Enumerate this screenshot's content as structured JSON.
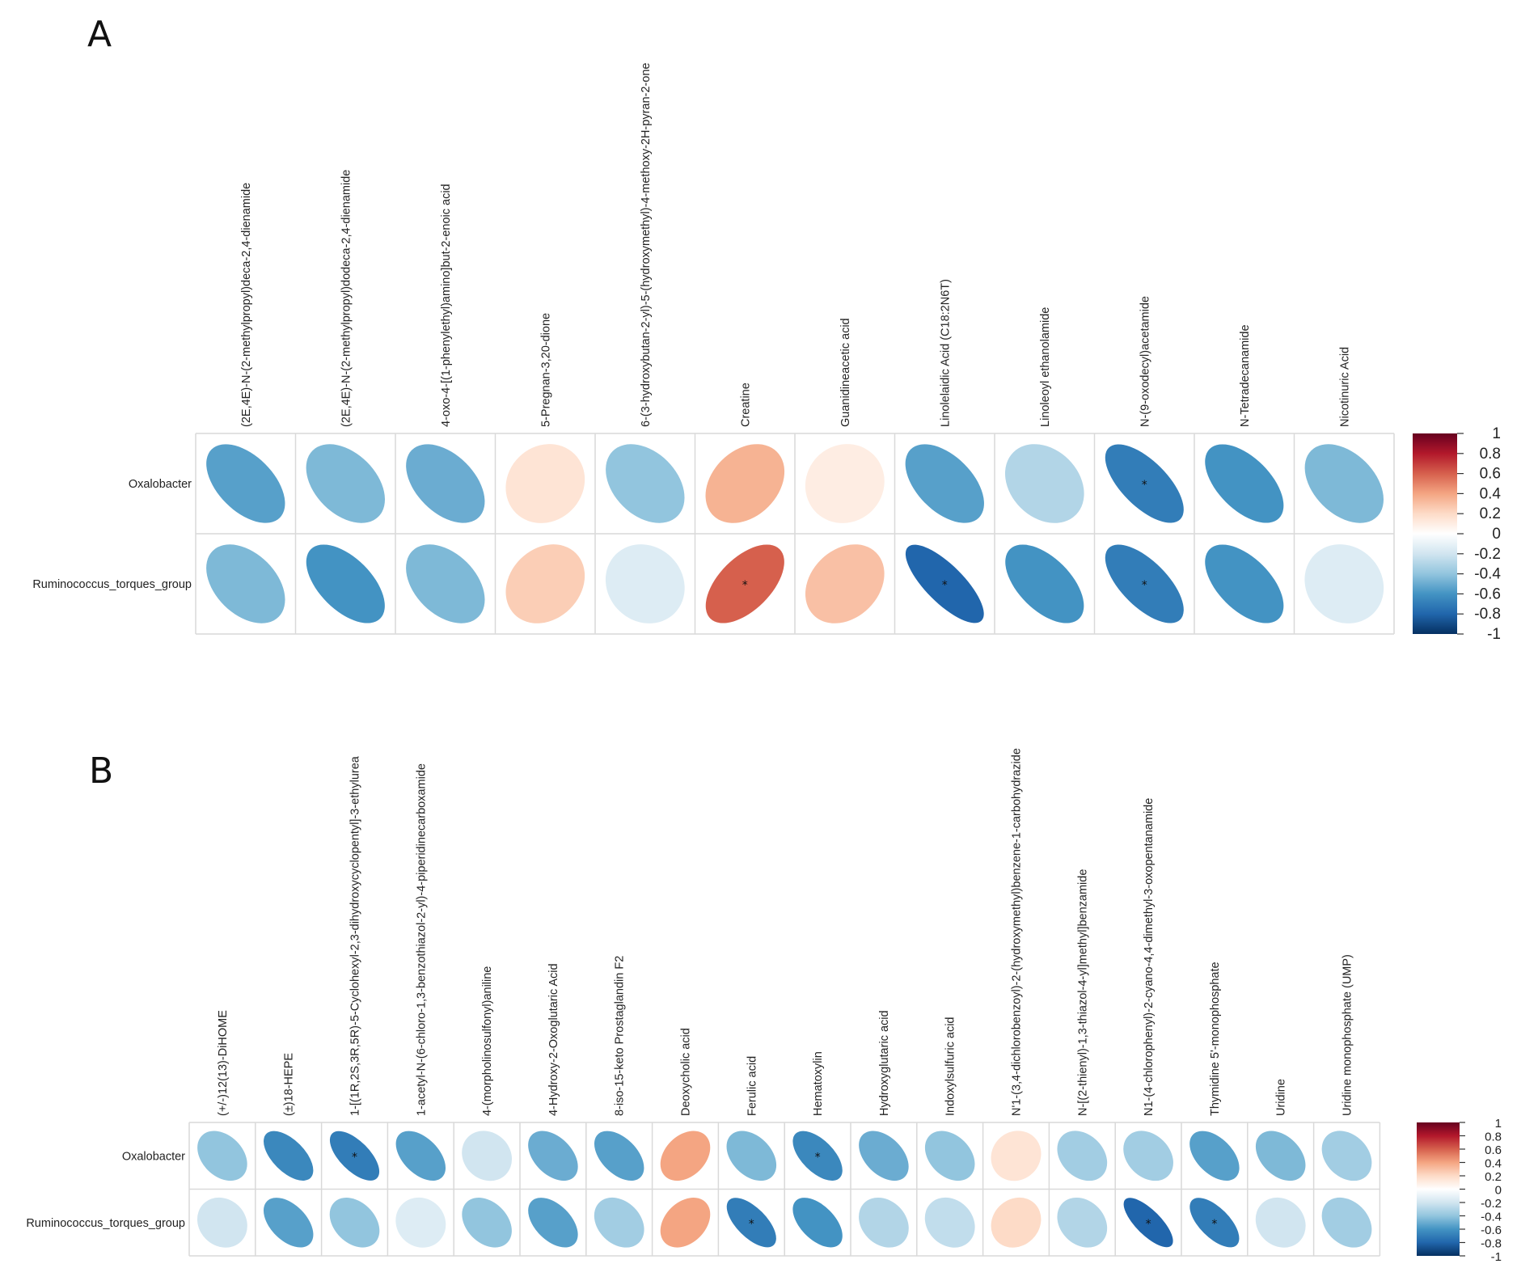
{
  "chart_data": [
    {
      "panel": "A",
      "type": "heatmap",
      "columns": [
        "(2E,4E)-N-(2-methylpropyl)deca-2,4-dienamide",
        "(2E,4E)-N-(2-methylpropyl)dodeca-2,4-dienamide",
        "4-oxo-4-[(1-phenylethyl)amino]but-2-enoic acid",
        "5-Pregnan-3,20-dione",
        "6-(3-hydroxybutan-2-yl)-5-(hydroxymethyl)-4-methoxy-2H-pyran-2-one",
        "Creatine",
        "Guanidineacetic acid",
        "Linolelaidic Acid (C18:2N6T)",
        "Linoleoyl ethanolamide",
        "N-(9-oxodecyl)acetamide",
        "N-Tetradecanamide",
        "Nicotinuric Acid"
      ],
      "rows": [
        "Oxalobacter",
        "Ruminococcus_torques_group"
      ],
      "values": [
        [
          -0.55,
          -0.45,
          -0.5,
          0.15,
          -0.4,
          0.35,
          0.1,
          -0.55,
          -0.3,
          -0.7,
          -0.6,
          -0.45
        ],
        [
          -0.45,
          -0.6,
          -0.45,
          0.25,
          -0.15,
          0.6,
          0.3,
          -0.8,
          -0.6,
          -0.7,
          -0.6,
          -0.15
        ]
      ],
      "significant": [
        [
          false,
          false,
          false,
          false,
          false,
          false,
          false,
          false,
          false,
          true,
          false,
          false
        ],
        [
          false,
          false,
          false,
          false,
          false,
          true,
          false,
          true,
          false,
          true,
          false,
          false
        ]
      ],
      "significance_marker": "*",
      "color_range": [
        -1,
        1
      ],
      "colorbar_ticks": [
        "1",
        "0.8",
        "0.6",
        "0.4",
        "0.2",
        "0",
        "-0.2",
        "-0.4",
        "-0.6",
        "-0.8",
        "-1"
      ]
    },
    {
      "panel": "B",
      "type": "heatmap",
      "columns": [
        "(+/-)12(13)-DiHOME",
        "(±)18-HEPE",
        "1-[(1R,2S,3R,5R)-5-Cyclohexyl-2,3-dihydroxycyclopentyl]-3-ethylurea",
        "1-acetyl-N-(6-chloro-1,3-benzothiazol-2-yl)-4-piperidinecarboxamide",
        "4-(morpholinosulfonyl)aniline",
        "4-Hydroxy-2-Oxoglutaric Acid",
        "8-iso-15-keto Prostaglandin F2",
        "Deoxycholic acid",
        "Ferulic acid",
        "Hematoxylin",
        "Hydroxyglutaric acid",
        "Indoxylsulfuric acid",
        "N'1-(3,4-dichlorobenzoyl)-2-(hydroxymethyl)benzene-1-carbohydrazide",
        "N-[(2-thienyl)-1,3-thiazol-4-yl]methyl]benzamide",
        "N1-(4-chlorophenyl)-2-cyano-4,4-dimethyl-3-oxopentanamide",
        "Thymidine 5'-monophosphate",
        "Uridine",
        "Uridine monophosphate (UMP)"
      ],
      "rows": [
        "Oxalobacter",
        "Ruminococcus_torques_group"
      ],
      "values": [
        [
          -0.4,
          -0.65,
          -0.7,
          -0.55,
          -0.2,
          -0.5,
          -0.55,
          0.4,
          -0.45,
          -0.65,
          -0.5,
          -0.4,
          0.15,
          -0.35,
          -0.35,
          -0.55,
          -0.45,
          -0.35
        ],
        [
          -0.2,
          -0.55,
          -0.4,
          -0.15,
          -0.4,
          -0.55,
          -0.35,
          0.4,
          -0.7,
          -0.6,
          -0.3,
          -0.25,
          0.2,
          -0.3,
          -0.8,
          -0.7,
          -0.2,
          -0.35
        ]
      ],
      "significant": [
        [
          false,
          false,
          true,
          false,
          false,
          false,
          false,
          false,
          false,
          true,
          false,
          false,
          false,
          false,
          false,
          false,
          false,
          false
        ],
        [
          false,
          false,
          false,
          false,
          false,
          false,
          false,
          false,
          true,
          false,
          false,
          false,
          false,
          false,
          true,
          true,
          false,
          false
        ]
      ],
      "significance_marker": "*",
      "color_range": [
        -1,
        1
      ],
      "colorbar_ticks": [
        "1",
        "0.8",
        "0.6",
        "0.4",
        "0.2",
        "0",
        "-0.2",
        "-0.4",
        "-0.6",
        "-0.8",
        "-1"
      ]
    }
  ]
}
